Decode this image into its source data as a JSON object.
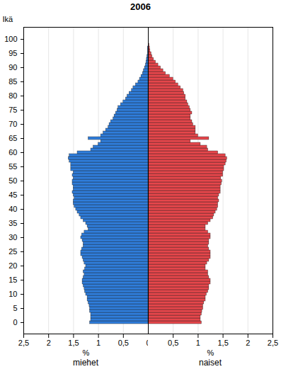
{
  "chart_data": {
    "type": "bar",
    "orientation": "horizontal",
    "title": "2006",
    "ylabel": "Ikä",
    "xlabel": "%",
    "grid": true,
    "xlim": [
      0,
      2.5
    ],
    "categories": [
      0,
      1,
      2,
      3,
      4,
      5,
      6,
      7,
      8,
      9,
      10,
      11,
      12,
      13,
      14,
      15,
      16,
      17,
      18,
      19,
      20,
      21,
      22,
      23,
      24,
      25,
      26,
      27,
      28,
      29,
      30,
      31,
      32,
      33,
      34,
      35,
      36,
      37,
      38,
      39,
      40,
      41,
      42,
      43,
      44,
      45,
      46,
      47,
      48,
      49,
      50,
      51,
      52,
      53,
      54,
      55,
      56,
      57,
      58,
      59,
      60,
      61,
      62,
      63,
      64,
      65,
      66,
      67,
      68,
      69,
      70,
      71,
      72,
      73,
      74,
      75,
      76,
      77,
      78,
      79,
      80,
      81,
      82,
      83,
      84,
      85,
      86,
      87,
      88,
      89,
      90,
      91,
      92,
      93,
      94,
      95,
      96,
      97,
      98,
      99,
      100
    ],
    "yticks": [
      0,
      5,
      10,
      15,
      20,
      25,
      30,
      35,
      40,
      45,
      50,
      55,
      60,
      65,
      70,
      75,
      80,
      85,
      90,
      95,
      100
    ],
    "series": [
      {
        "name": "miehet",
        "color": "#2f7ddb",
        "xticks": [
          {
            "value": 2.5,
            "label": "2,5"
          },
          2,
          {
            "value": 1.5,
            "label": "1,5"
          },
          1,
          {
            "value": 0.5,
            "label": "0,5"
          },
          0
        ],
        "values": [
          1.17,
          1.15,
          1.15,
          1.15,
          1.17,
          1.17,
          1.18,
          1.2,
          1.22,
          1.22,
          1.25,
          1.27,
          1.28,
          1.3,
          1.32,
          1.32,
          1.3,
          1.28,
          1.3,
          1.27,
          1.25,
          1.28,
          1.3,
          1.32,
          1.35,
          1.35,
          1.33,
          1.3,
          1.3,
          1.32,
          1.35,
          1.33,
          1.28,
          1.2,
          1.22,
          1.25,
          1.3,
          1.35,
          1.38,
          1.42,
          1.45,
          1.48,
          1.5,
          1.5,
          1.48,
          1.5,
          1.52,
          1.5,
          1.5,
          1.52,
          1.52,
          1.5,
          1.52,
          1.5,
          1.55,
          1.55,
          1.55,
          1.58,
          1.6,
          1.58,
          1.42,
          1.15,
          1.1,
          1.0,
          0.95,
          1.2,
          0.95,
          0.9,
          0.85,
          0.8,
          0.78,
          0.75,
          0.7,
          0.68,
          0.65,
          0.62,
          0.6,
          0.55,
          0.5,
          0.45,
          0.42,
          0.38,
          0.33,
          0.3,
          0.25,
          0.2,
          0.17,
          0.14,
          0.11,
          0.09,
          0.07,
          0.05,
          0.04,
          0.03,
          0.02,
          0.01,
          0.01,
          0.01,
          0,
          0,
          0
        ]
      },
      {
        "name": "naiset",
        "color": "#e6464b",
        "xticks": [
          {
            "value": 0.5,
            "label": "0,5"
          },
          1,
          {
            "value": 1.5,
            "label": "1,5"
          },
          2,
          {
            "value": 2.5,
            "label": "2,5"
          }
        ],
        "values": [
          1.07,
          1.05,
          1.05,
          1.07,
          1.08,
          1.1,
          1.1,
          1.12,
          1.15,
          1.15,
          1.17,
          1.2,
          1.22,
          1.22,
          1.25,
          1.25,
          1.22,
          1.2,
          1.2,
          1.15,
          1.15,
          1.18,
          1.22,
          1.25,
          1.25,
          1.25,
          1.22,
          1.2,
          1.22,
          1.22,
          1.25,
          1.25,
          1.2,
          1.15,
          1.15,
          1.2,
          1.25,
          1.3,
          1.32,
          1.35,
          1.38,
          1.4,
          1.4,
          1.42,
          1.4,
          1.42,
          1.45,
          1.45,
          1.45,
          1.47,
          1.48,
          1.46,
          1.5,
          1.5,
          1.52,
          1.52,
          1.55,
          1.57,
          1.58,
          1.55,
          1.4,
          1.2,
          1.18,
          1.05,
          0.85,
          1.22,
          1.0,
          0.95,
          0.95,
          0.95,
          0.9,
          0.88,
          0.85,
          0.85,
          0.88,
          0.85,
          0.83,
          0.8,
          0.78,
          0.75,
          0.75,
          0.72,
          0.7,
          0.65,
          0.6,
          0.55,
          0.5,
          0.43,
          0.35,
          0.3,
          0.25,
          0.2,
          0.15,
          0.11,
          0.08,
          0.06,
          0.04,
          0.03,
          0.02,
          0.01,
          0.01
        ]
      }
    ]
  }
}
